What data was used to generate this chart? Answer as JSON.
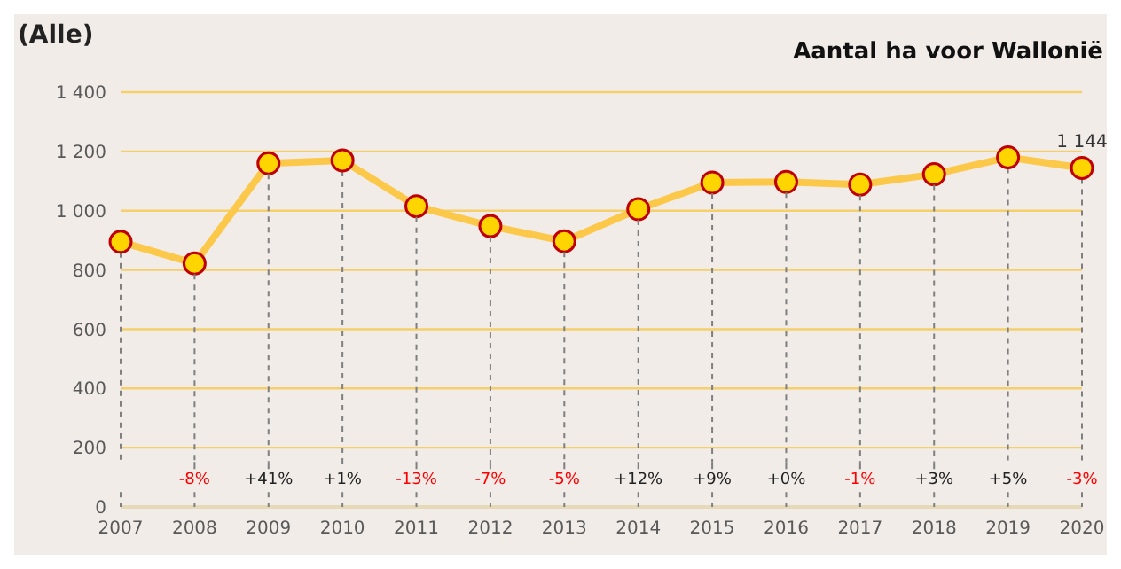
{
  "chart_data": {
    "type": "line",
    "title": "Aantal ha voor Wallonië",
    "ylabel": "(Alle)",
    "categories": [
      "2007",
      "2008",
      "2009",
      "2010",
      "2011",
      "2012",
      "2013",
      "2014",
      "2015",
      "2016",
      "2017",
      "2018",
      "2019",
      "2020"
    ],
    "series": [
      {
        "color": "#fcc84a",
        "values": [
          895,
          822,
          1160,
          1170,
          1015,
          948,
          897,
          1005,
          1095,
          1097,
          1088,
          1123,
          1180,
          1144
        ],
        "value_labels": [
          null,
          null,
          null,
          null,
          null,
          null,
          null,
          null,
          null,
          null,
          null,
          null,
          null,
          "1 144"
        ]
      }
    ],
    "ylim": [
      0,
      1400
    ],
    "yticks": [
      {
        "value": 0,
        "label": "0"
      },
      {
        "value": 200,
        "label": "200"
      },
      {
        "value": 400,
        "label": "400"
      },
      {
        "value": 600,
        "label": "600"
      },
      {
        "value": 800,
        "label": "800"
      },
      {
        "value": 1000,
        "label": "1 000"
      },
      {
        "value": 1200,
        "label": "1 200"
      },
      {
        "value": 1400,
        "label": "1 400"
      }
    ],
    "grid": true,
    "marker": "circle",
    "line_style": "solid",
    "annotations": [
      {
        "text": "-8%",
        "x": "2008",
        "y": 822
      },
      {
        "text": "+41%",
        "x": "2009",
        "y": 1160
      },
      "+1%",
      {
        "text": "-13%",
        "x": "2011",
        "y": 1015
      },
      {
        "text": "-7%",
        "x": "2012",
        "y": 948
      },
      {
        "text": "-5%",
        "x": "2013",
        "y": 897
      },
      {
        "text": "+12%",
        "x": "2014",
        "y": 1005
      },
      {
        "text": "+9%",
        "x": "2015",
        "y": 1095
      },
      {
        "text": "+0%",
        "x": "2016",
        "y": 1097
      },
      {
        "text": "-1%",
        "x": "2017",
        "y": 1088
      },
      {
        "text": "+3%",
        "x": "2018",
        "y": 1123
      },
      "+5%",
      "-3%"
    ]
  }
}
